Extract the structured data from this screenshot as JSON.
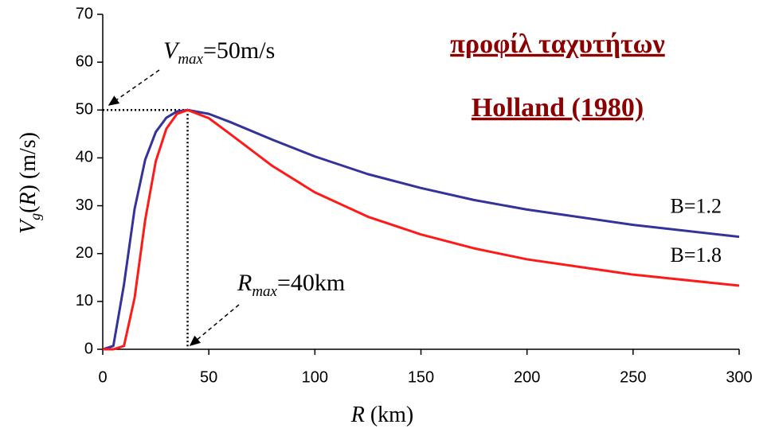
{
  "chart_data": {
    "type": "line",
    "title_lines": [
      "προφίλ ταχυτήτων",
      "Holland (1980)"
    ],
    "x_label": [
      "R",
      " (km)"
    ],
    "y_label": [
      "V",
      "g",
      "(",
      "R",
      ") (m/s)"
    ],
    "annotations": [
      [
        "V",
        "max",
        "=50m/s"
      ],
      [
        "R",
        "max",
        "=40km"
      ]
    ],
    "x": [
      0,
      5,
      10,
      15,
      20,
      25,
      30,
      35,
      40,
      50,
      60,
      80,
      100,
      125,
      150,
      175,
      200,
      250,
      300
    ],
    "series": [
      {
        "name": "B=1.2",
        "color": "#333399",
        "values": [
          0,
          0.7,
          13.5,
          29.3,
          39.6,
          45.4,
          48.4,
          49.7,
          50,
          49.2,
          47.5,
          43.8,
          40.3,
          36.6,
          33.7,
          31.2,
          29.2,
          26.0,
          23.5
        ]
      },
      {
        "name": "B=1.8",
        "color": "#ff1a1a",
        "values": [
          0,
          0,
          0.7,
          10.7,
          27.0,
          39.3,
          46.1,
          49.2,
          50,
          48.3,
          45.0,
          38.3,
          32.8,
          27.7,
          24.0,
          21.1,
          18.8,
          15.6,
          13.3
        ]
      }
    ],
    "xlim": [
      0,
      300
    ],
    "xticks": [
      0,
      50,
      100,
      150,
      200,
      250,
      300
    ],
    "ylim": [
      0,
      70
    ],
    "yticks": [
      0,
      10,
      20,
      30,
      40,
      50,
      60,
      70
    ]
  }
}
